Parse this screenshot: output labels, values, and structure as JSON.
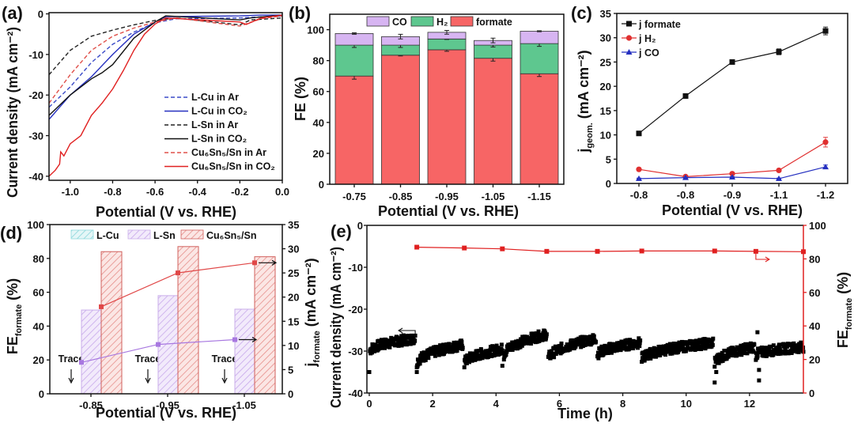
{
  "chart_data": [
    {
      "panel": "(a)",
      "type": "line",
      "xlabel": "Potential (V vs. RHE)",
      "ylabel": "Current density (mA cm⁻²)",
      "xlim": [
        -1.1,
        0
      ],
      "ylim": [
        -41,
        0.3
      ],
      "xticks": [
        -1.0,
        -0.8,
        -0.6,
        -0.4,
        -0.2,
        0.0
      ],
      "xtick_labels": [
        "-1.0",
        "-0.8",
        "-0.6",
        "-0.4",
        "-0.2",
        "0.0"
      ],
      "yticks": [
        0,
        -10,
        -20,
        -30,
        -40
      ],
      "ytick_labels": [
        "0",
        "-10",
        "-20",
        "-30",
        "-40"
      ],
      "legend_placement": "bottom-right",
      "series": [
        {
          "name": "L-Cu in Ar",
          "color": "#3b4bc8",
          "dash": true,
          "x": [
            -1.1,
            -1.0,
            -0.9,
            -0.8,
            -0.7,
            -0.6,
            -0.5,
            -0.2,
            0
          ],
          "y": [
            -23,
            -18,
            -12,
            -7.5,
            -4.5,
            -2.2,
            -1.2,
            -1,
            -0.5
          ]
        },
        {
          "name": "L-Cu in CO₂",
          "color": "#2630c0",
          "dash": false,
          "x": [
            -1.1,
            -1.05,
            -1.0,
            -0.9,
            -0.8,
            -0.7,
            -0.6,
            -0.55,
            -0.2,
            -0.1,
            0
          ],
          "y": [
            -26,
            -23,
            -20,
            -15.5,
            -10,
            -5,
            -2,
            -0.7,
            -0.5,
            -0.3,
            -0.3
          ]
        },
        {
          "name": "L-Sn in Ar",
          "color": "#222222",
          "dash": true,
          "x": [
            -1.1,
            -1.0,
            -0.9,
            -0.8,
            -0.7,
            -0.6,
            -0.5,
            -0.2,
            -0.15,
            0
          ],
          "y": [
            -15,
            -9,
            -5.5,
            -4,
            -2.7,
            -1.6,
            -1,
            -2.7,
            -1.5,
            -1
          ]
        },
        {
          "name": "L-Sn in CO₂",
          "color": "#111111",
          "dash": false,
          "x": [
            -1.1,
            -1.0,
            -0.9,
            -0.85,
            -0.8,
            -0.7,
            -0.6,
            -0.55,
            -0.2,
            -0.15,
            0
          ],
          "y": [
            -25,
            -20,
            -16,
            -14.5,
            -12.5,
            -6,
            -2,
            -0.5,
            -1.5,
            -1,
            -0.3
          ]
        },
        {
          "name": "Cu₆Sn₅/Sn in Ar",
          "color": "#e0504a",
          "dash": true,
          "x": [
            -1.1,
            -1.0,
            -0.9,
            -0.8,
            -0.7,
            -0.6,
            -0.5,
            -0.2,
            -0.1,
            0
          ],
          "y": [
            -22,
            -15,
            -9,
            -5.5,
            -3.5,
            -2,
            -1,
            -3,
            -1.2,
            -0.5
          ]
        },
        {
          "name": "Cu₆Sn₅/Sn in CO₂",
          "color": "#e02020",
          "dash": false,
          "x": [
            -1.1,
            -1.07,
            -1.05,
            -1.045,
            -1.03,
            -1.0,
            -0.95,
            -0.9,
            -0.85,
            -0.8,
            -0.75,
            -0.7,
            -0.65,
            -0.6,
            -0.55,
            -0.2,
            -0.17,
            -0.1,
            0
          ],
          "y": [
            -40,
            -38.5,
            -37,
            -34,
            -35,
            -32,
            -30,
            -25,
            -22,
            -18.5,
            -14,
            -9,
            -5,
            -2.5,
            -1,
            -2,
            -2.6,
            -1,
            -0.3
          ]
        }
      ]
    },
    {
      "panel": "(b)",
      "type": "bar",
      "stacked": true,
      "xlabel": "Potential (V vs. RHE)",
      "ylabel": "FE (%)",
      "categories": [
        "-0.75",
        "-0.85",
        "-0.95",
        "-1.05",
        "-1.15"
      ],
      "ylim": [
        0,
        110
      ],
      "yticks": [
        0,
        20,
        40,
        60,
        80,
        100
      ],
      "ytick_labels": [
        "0",
        "20",
        "40",
        "60",
        "80",
        "100"
      ],
      "legend_placement": "top",
      "series": [
        {
          "name": "formate",
          "color": "#f76565",
          "values": [
            70,
            83.5,
            87,
            81.5,
            71.5
          ],
          "errors": [
            2,
            0.5,
            1,
            1.8,
            1.8
          ]
        },
        {
          "name": "H₂",
          "color": "#5ec78f",
          "values": [
            20,
            6.5,
            7,
            8.5,
            19.5
          ],
          "errors": [
            1.5,
            1.5,
            0.3,
            1.2,
            1.8
          ]
        },
        {
          "name": "CO",
          "color": "#d7b5f2",
          "values": [
            7.5,
            5.5,
            4.3,
            3,
            8
          ],
          "errors": [
            0.5,
            1.5,
            1.2,
            1.5,
            0.3
          ]
        }
      ],
      "legend_order": [
        "CO",
        "H₂",
        "formate"
      ]
    },
    {
      "panel": "(c)",
      "type": "line",
      "xlabel": "Potential (V vs. RHE)",
      "ylabel_main": "j",
      "ylabel_sub": "geom.",
      "ylabel_rest": " (mA cm⁻²)",
      "categories": [
        "-0.8",
        "-0.8",
        "-0.9",
        "-1.1",
        "-1.2"
      ],
      "ylim": [
        0,
        35
      ],
      "yticks": [
        0,
        5,
        10,
        15,
        20,
        25,
        30,
        35
      ],
      "ytick_labels": [
        "0",
        "5",
        "10",
        "15",
        "20",
        "25",
        "30",
        "35"
      ],
      "legend_placement": "top-left",
      "series": [
        {
          "name": "j formate",
          "color": "#111111",
          "marker": "square",
          "values": [
            10.3,
            18,
            25,
            27.1,
            31.4
          ],
          "errors": [
            0.3,
            0.2,
            0.3,
            0.6,
            0.8
          ]
        },
        {
          "name": "j H₂",
          "color": "#e03030",
          "marker": "circle",
          "values": [
            2.9,
            1.4,
            2.0,
            2.7,
            8.5
          ],
          "errors": [
            0.2,
            0.2,
            0.2,
            0.2,
            1.0
          ]
        },
        {
          "name": "j CO",
          "color": "#2530c0",
          "marker": "triangle",
          "values": [
            1.0,
            1.2,
            1.3,
            1.0,
            3.4
          ],
          "errors": [
            0.1,
            0.1,
            0.1,
            0.1,
            0.4
          ]
        }
      ]
    },
    {
      "panel": "(d)",
      "type": "bar",
      "xlabel": "Potential (V vs. RHE)",
      "ylabel_main": "FE",
      "ylabel_sub": "formate",
      "ylabel_rest": " (%)",
      "y2label_main": "j",
      "y2label_sub": "formate",
      "y2label_rest": " (mA cm⁻²)",
      "categories": [
        "-0.85",
        "-0.95",
        "-1.05"
      ],
      "ylim": [
        0,
        100
      ],
      "yticks": [
        0,
        20,
        40,
        60,
        80,
        100
      ],
      "ytick_labels": [
        "0",
        "20",
        "40",
        "60",
        "80",
        "100"
      ],
      "y2lim": [
        0,
        35
      ],
      "y2ticks": [
        0,
        5,
        10,
        15,
        20,
        25,
        30,
        35
      ],
      "y2tick_labels": [
        "0",
        "5",
        "10",
        "15",
        "20",
        "25",
        "30",
        "35"
      ],
      "legend_placement": "top",
      "annotation": "Trace",
      "series": [
        {
          "name": "L-Cu",
          "color": "#7fd3d8",
          "fe": [
            "Trace",
            "Trace",
            "Trace"
          ]
        },
        {
          "name": "L-Sn",
          "color": "#b58be0",
          "fe": [
            49.5,
            58,
            50
          ],
          "j": [
            6.5,
            10.2,
            11.2
          ]
        },
        {
          "name": "Cu₆Sn₅/Sn",
          "color": "#e05a5a",
          "fe": [
            84,
            87,
            81
          ],
          "j": [
            18,
            25,
            27.1
          ]
        }
      ]
    },
    {
      "panel": "(e)",
      "type": "scatter",
      "xlabel": "Time (h)",
      "ylabel": "Current density (mA cm⁻²)",
      "y2label_main": "FE",
      "y2label_sub": "formate",
      "y2label_rest": " (%)",
      "xlim": [
        0,
        13.7
      ],
      "xticks": [
        0,
        2,
        4,
        6,
        8,
        10,
        12
      ],
      "xtick_labels": [
        "0",
        "2",
        "4",
        "6",
        "8",
        "10",
        "12"
      ],
      "ylim": [
        -40,
        0
      ],
      "yticks": [
        0,
        -10,
        -20,
        -30,
        -40
      ],
      "ytick_labels": [
        "0",
        "-10",
        "-20",
        "-30",
        "-40"
      ],
      "y2lim": [
        0,
        100
      ],
      "y2ticks": [
        0,
        20,
        40,
        60,
        80,
        100
      ],
      "y2tick_labels": [
        "0",
        "20",
        "40",
        "60",
        "80",
        "100"
      ],
      "y2color": "#e02020",
      "current_segments": [
        {
          "t": [
            0.02,
            1.45
          ],
          "j": [
            -30,
            -27
          ]
        },
        {
          "t": [
            1.5,
            2.95
          ],
          "j": [
            -33,
            -28.5
          ]
        },
        {
          "t": [
            3.0,
            4.2
          ],
          "j": [
            -33,
            -29.5
          ]
        },
        {
          "t": [
            4.25,
            5.6
          ],
          "j": [
            -31,
            -26
          ]
        },
        {
          "t": [
            5.65,
            7.15
          ],
          "j": [
            -32,
            -27
          ]
        },
        {
          "t": [
            7.2,
            8.55
          ],
          "j": [
            -31,
            -28
          ]
        },
        {
          "t": [
            8.6,
            10.85
          ],
          "j": [
            -32,
            -28
          ]
        },
        {
          "t": [
            10.9,
            12.15
          ],
          "j": [
            -33,
            -29
          ]
        },
        {
          "t": [
            12.2,
            13.7
          ],
          "j": [
            -31,
            -29
          ]
        }
      ],
      "current_outliers": {
        "t": [
          0.0,
          1.5,
          4.2,
          10.9,
          10.95,
          12.3,
          12.3,
          12.25
        ],
        "j": [
          -35,
          -35,
          -33.5,
          -37.5,
          -35,
          -37,
          -34.5,
          -25.5
        ]
      },
      "fe_formate": {
        "t": [
          1.5,
          3.0,
          4.2,
          5.6,
          7.2,
          8.6,
          10.9,
          12.2,
          13.7
        ],
        "values": [
          87,
          86.5,
          86,
          84.5,
          84.5,
          84.7,
          84.7,
          84.5,
          84.3
        ]
      }
    }
  ]
}
